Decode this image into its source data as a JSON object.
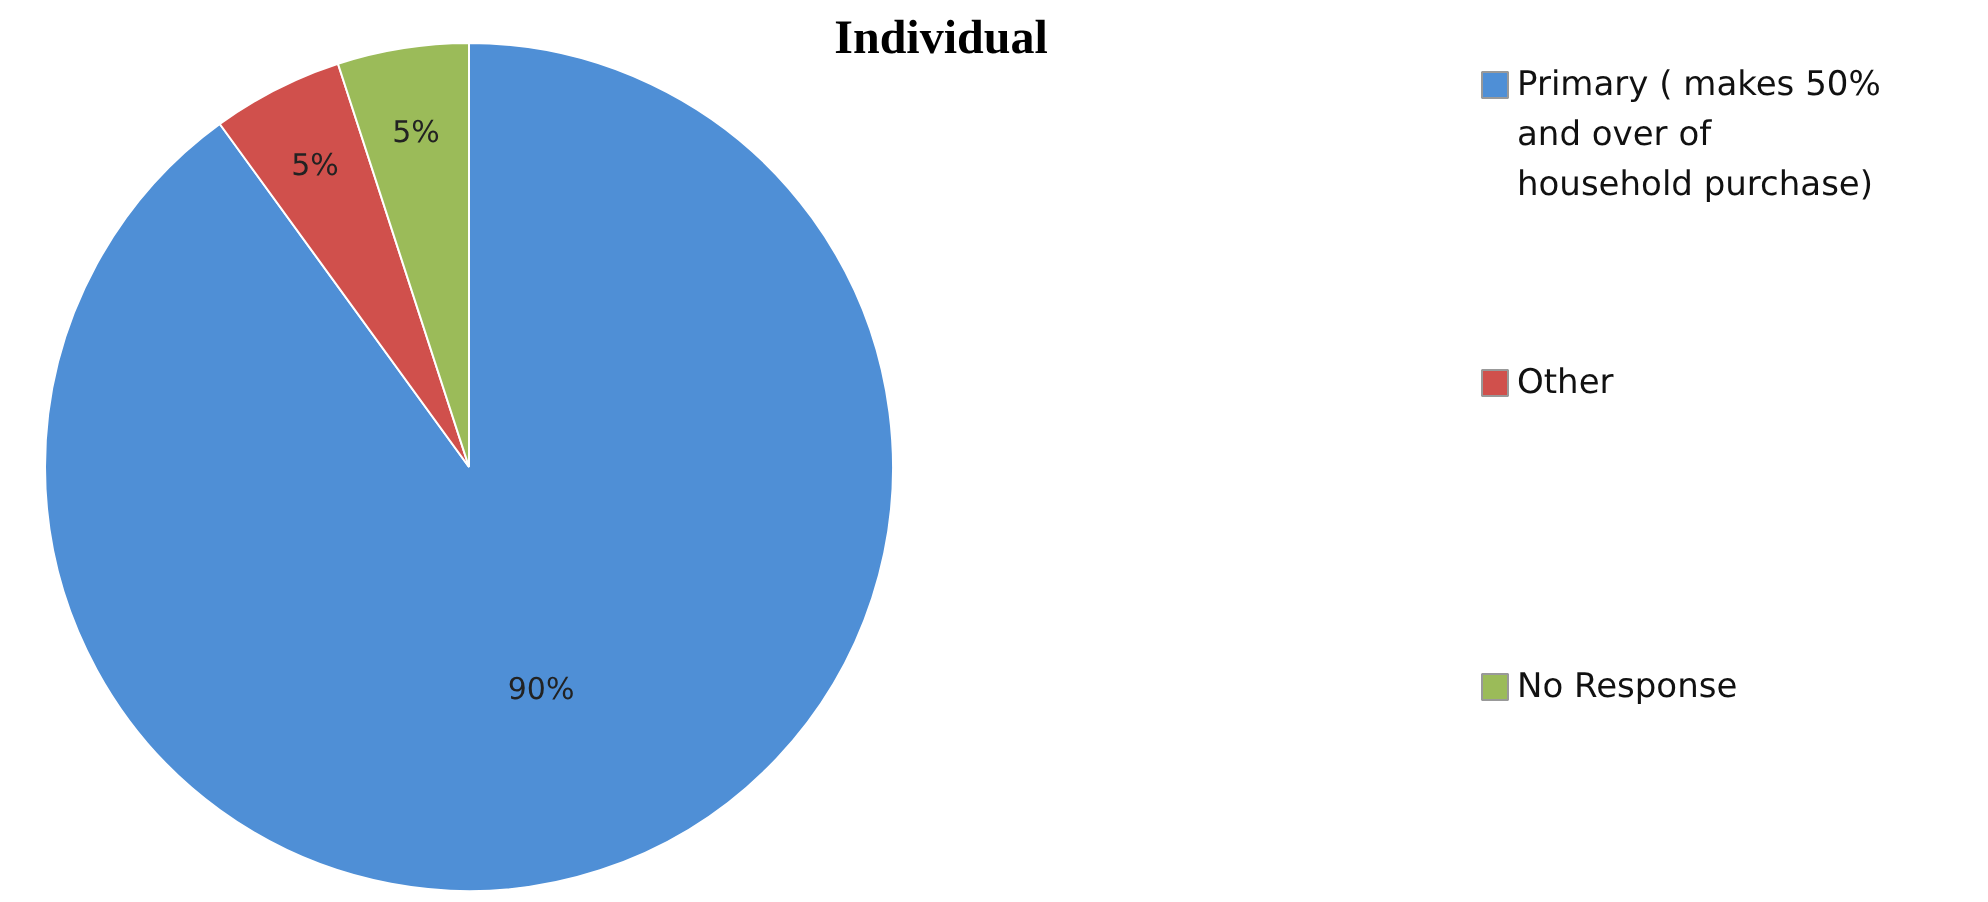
{
  "chart_data": {
    "type": "pie",
    "title": "Individual",
    "categories": [
      "Primary ( makes 50% and over of household purchase)",
      "Other",
      "No Response"
    ],
    "values": [
      90,
      5,
      5
    ],
    "colors": [
      "#4f8fd6",
      "#d0504c",
      "#9bbb59"
    ],
    "value_labels": [
      "90%",
      "5%",
      "5%"
    ],
    "legend": "right"
  }
}
